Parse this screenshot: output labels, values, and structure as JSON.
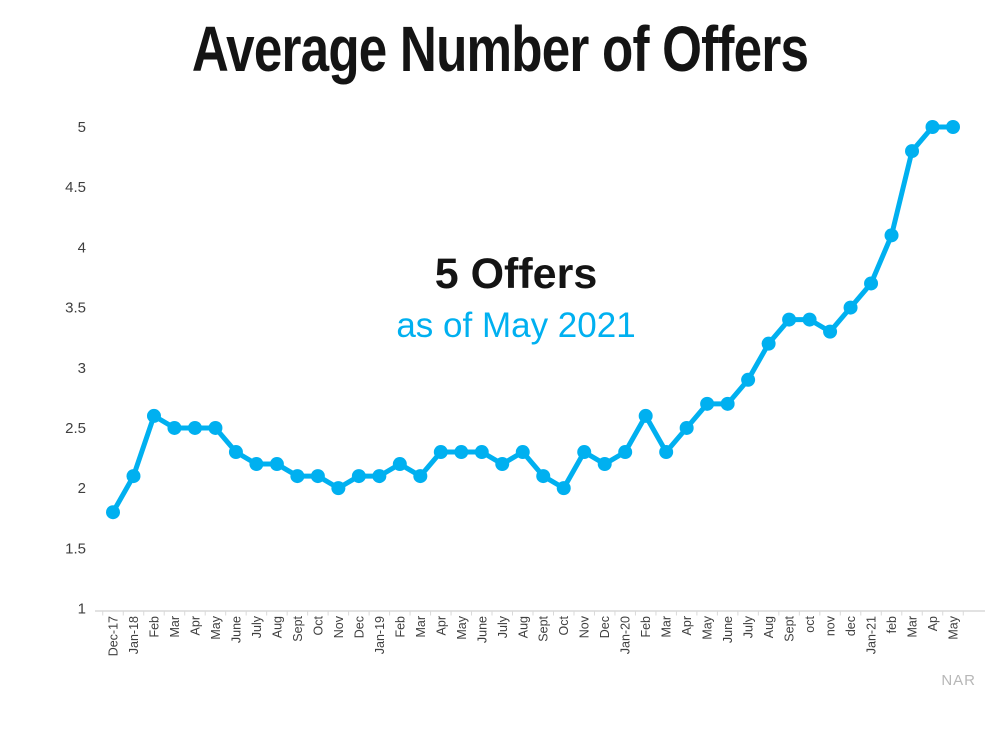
{
  "title": "Average Number of Offers",
  "annotation": {
    "line1": "5 Offers",
    "line2": "as of May 2021"
  },
  "source": "NAR",
  "colors": {
    "line": "#00b0f0",
    "marker": "#00b0f0",
    "annotation_accent": "#00b0f0",
    "title": "#141414",
    "axis": "#d9d9d9",
    "tick_label": "#3f3f3f",
    "source": "#b7b7b7",
    "background": "#ffffff"
  },
  "chart_data": {
    "type": "line",
    "title": "Average Number of Offers",
    "xlabel": "",
    "ylabel": "",
    "ylim": [
      1,
      5
    ],
    "yticks": [
      1,
      1.5,
      2,
      2.5,
      3,
      3.5,
      4,
      4.5,
      5
    ],
    "grid": false,
    "legend": false,
    "marker": "circle",
    "categories": [
      "Dec-17",
      "Jan-18",
      "Feb",
      "Mar",
      "Apr",
      "May",
      "June",
      "July",
      "Aug",
      "Sept",
      "Oct",
      "Nov",
      "Dec",
      "Jan-19",
      "Feb",
      "Mar",
      "Apr",
      "May",
      "June",
      "July",
      "Aug",
      "Sept",
      "Oct",
      "Nov",
      "Dec",
      "Jan-20",
      "Feb",
      "Mar",
      "Apr",
      "May",
      "June",
      "July",
      "Aug",
      "Sept",
      "oct",
      "nov",
      "dec",
      "Jan-21",
      "feb",
      "Mar",
      "Ap",
      "May"
    ],
    "values": [
      1.8,
      2.1,
      2.6,
      2.5,
      2.5,
      2.5,
      2.3,
      2.2,
      2.2,
      2.1,
      2.1,
      2.0,
      2.1,
      2.1,
      2.2,
      2.1,
      2.3,
      2.3,
      2.3,
      2.2,
      2.3,
      2.1,
      2.0,
      2.3,
      2.2,
      2.3,
      2.6,
      2.3,
      2.5,
      2.7,
      2.7,
      2.9,
      3.2,
      3.4,
      3.4,
      3.3,
      3.5,
      3.7,
      4.1,
      4.8,
      5.0,
      5.0
    ],
    "annotations": [
      {
        "text": "5 Offers",
        "color": "#141414"
      },
      {
        "text": "as of May 2021",
        "color": "#00b0f0"
      }
    ]
  }
}
